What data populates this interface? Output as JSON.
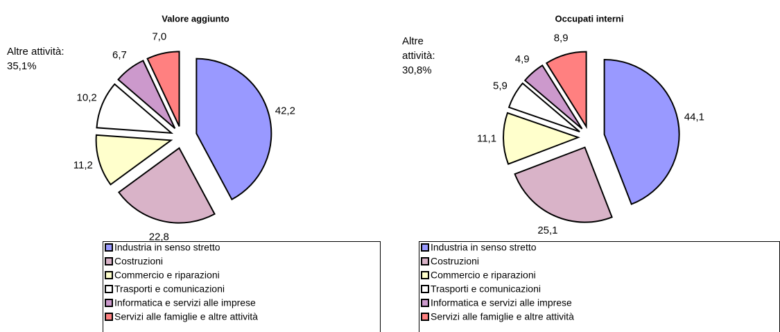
{
  "chart_data": [
    {
      "type": "pie",
      "title": "Valore aggiunto",
      "categories": [
        "Industria in senso stretto",
        "Costruzioni",
        "Commercio e riparazioni",
        "Trasporti e comunicazioni",
        "Informatica e servizi alle imprese",
        "Servizi alle famiglie e altre attività"
      ],
      "values": [
        42.2,
        22.8,
        11.2,
        10.2,
        6.7,
        7.0
      ],
      "value_labels": [
        "42,2",
        "22,8",
        "11,2",
        "10,2",
        "6,7",
        "7,0"
      ],
      "colors": [
        "#9999ff",
        "#d9b3c8",
        "#ffffcc",
        "#ffffff",
        "#cc99cc",
        "#ff8080"
      ],
      "annotation": [
        "Altre attività:",
        "35,1%"
      ]
    },
    {
      "type": "pie",
      "title": "Occupati interni",
      "categories": [
        "Industria in senso stretto",
        "Costruzioni",
        "Commercio e riparazioni",
        "Trasporti e comunicazioni",
        "Informatica e servizi alle imprese",
        "Servizi alle famiglie e altre attività"
      ],
      "values": [
        44.1,
        25.1,
        11.1,
        5.9,
        4.9,
        8.9
      ],
      "value_labels": [
        "44,1",
        "25,1",
        "11,1",
        "5,9",
        "4,9",
        "8,9"
      ],
      "colors": [
        "#9999ff",
        "#d9b3c8",
        "#ffffcc",
        "#ffffff",
        "#cc99cc",
        "#ff8080"
      ],
      "annotation": [
        "Altre",
        "attività:",
        "30,8%"
      ]
    }
  ]
}
